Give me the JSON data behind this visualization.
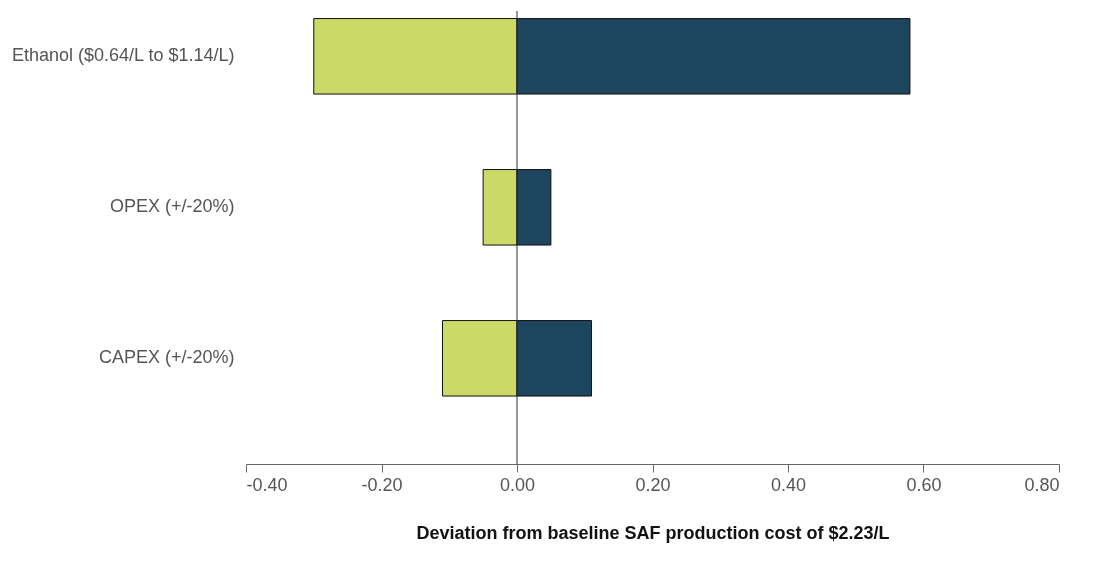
{
  "chart_data": {
    "type": "bar",
    "orientation": "horizontal",
    "stacked": true,
    "categories": [
      "Ethanol ($0.64/L to $1.14/L)",
      "OPEX (+/-20%)",
      "CAPEX (+/-20%)"
    ],
    "series": [
      {
        "color": "#cbd966",
        "values": [
          -0.3,
          -0.05,
          -0.11
        ]
      },
      {
        "color": "#1e455e",
        "values": [
          0.58,
          0.05,
          0.11
        ]
      }
    ],
    "xlabel": "Deviation from baseline SAF production cost of $2.23/L",
    "xlim": [
      -0.4,
      0.8
    ],
    "xticks": [
      {
        "value": -0.4,
        "label": "-0.40"
      },
      {
        "value": -0.2,
        "label": "-0.20"
      },
      {
        "value": 0,
        "label": "0.00"
      },
      {
        "value": 0.2,
        "label": "0.20"
      },
      {
        "value": 0.4,
        "label": "0.40"
      },
      {
        "value": 0.6,
        "label": "0.60"
      },
      {
        "value": 0.8,
        "label": "0.80"
      }
    ],
    "ref_lines": [
      {
        "axis": "x",
        "value": 0,
        "color": "#333333"
      }
    ]
  }
}
